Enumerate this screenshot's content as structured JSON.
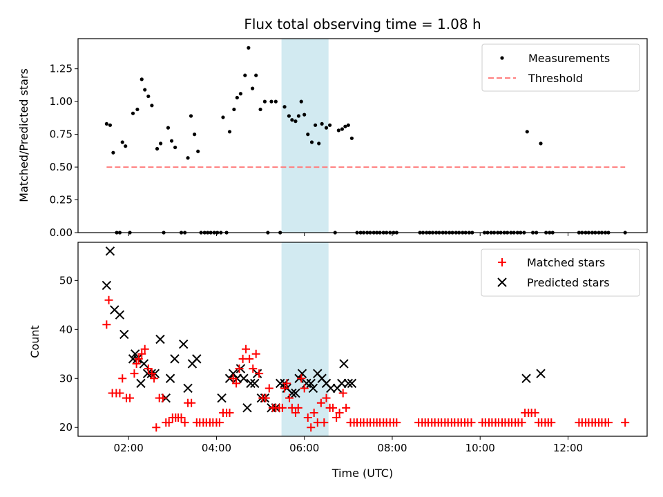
{
  "colors": {
    "measure": "#000000",
    "threshold": "#ff7f7f",
    "matched": "#ff0000",
    "predicted": "#000000",
    "span": "#add8e6"
  },
  "chart_data": [
    {
      "type": "scatter",
      "title": "Flux total observing time = 1.08 h",
      "ylabel": "Matched/Predicted stars",
      "xlim_hours": [
        0.85,
        13.8
      ],
      "ylim": [
        0,
        1.48
      ],
      "yticks": [
        "0.00",
        "0.25",
        "0.50",
        "0.75",
        "1.00",
        "1.25"
      ],
      "highlight_span_hours": [
        5.48,
        6.55
      ],
      "legend": {
        "position": "upper right",
        "measurements": "Measurements",
        "threshold": "Threshold"
      },
      "threshold": {
        "value": 0.5,
        "x_from_hours": 1.5,
        "x_to_hours": 13.3
      },
      "measurements": [
        [
          1.5,
          0.83
        ],
        [
          1.58,
          0.82
        ],
        [
          1.65,
          0.61
        ],
        [
          1.73,
          0.0
        ],
        [
          1.8,
          0.0
        ],
        [
          1.86,
          0.69
        ],
        [
          1.93,
          0.66
        ],
        [
          2.03,
          0.0
        ],
        [
          2.1,
          0.91
        ],
        [
          2.2,
          0.94
        ],
        [
          2.3,
          1.17
        ],
        [
          2.37,
          1.09
        ],
        [
          2.45,
          1.04
        ],
        [
          2.53,
          0.97
        ],
        [
          2.65,
          0.64
        ],
        [
          2.73,
          0.68
        ],
        [
          2.8,
          0.0
        ],
        [
          2.9,
          0.8
        ],
        [
          2.98,
          0.7
        ],
        [
          3.06,
          0.65
        ],
        [
          3.2,
          0.0
        ],
        [
          3.28,
          0.0
        ],
        [
          3.35,
          0.57
        ],
        [
          3.42,
          0.89
        ],
        [
          3.5,
          0.75
        ],
        [
          3.58,
          0.62
        ],
        [
          3.65,
          0.0
        ],
        [
          3.73,
          0.0
        ],
        [
          3.8,
          0.0
        ],
        [
          3.87,
          0.0
        ],
        [
          3.95,
          0.0
        ],
        [
          4.02,
          0.0
        ],
        [
          4.1,
          0.0
        ],
        [
          4.15,
          0.88
        ],
        [
          4.23,
          0.0
        ],
        [
          4.3,
          0.77
        ],
        [
          4.4,
          0.94
        ],
        [
          4.47,
          1.03
        ],
        [
          4.55,
          1.06
        ],
        [
          4.65,
          1.2
        ],
        [
          4.73,
          1.41
        ],
        [
          4.82,
          1.1
        ],
        [
          4.9,
          1.2
        ],
        [
          5.0,
          0.94
        ],
        [
          5.1,
          1.0
        ],
        [
          5.17,
          0.0
        ],
        [
          5.25,
          1.0
        ],
        [
          5.35,
          1.0
        ],
        [
          5.45,
          0.0
        ],
        [
          5.55,
          0.96
        ],
        [
          5.65,
          0.89
        ],
        [
          5.72,
          0.86
        ],
        [
          5.8,
          0.85
        ],
        [
          5.87,
          0.89
        ],
        [
          5.93,
          1.0
        ],
        [
          6.0,
          0.9
        ],
        [
          6.08,
          0.75
        ],
        [
          6.17,
          0.69
        ],
        [
          6.25,
          0.82
        ],
        [
          6.33,
          0.68
        ],
        [
          6.4,
          0.83
        ],
        [
          6.5,
          0.8
        ],
        [
          6.58,
          0.82
        ],
        [
          6.7,
          0.0
        ],
        [
          6.78,
          0.78
        ],
        [
          6.86,
          0.79
        ],
        [
          6.93,
          0.81
        ],
        [
          7.0,
          0.82
        ],
        [
          7.08,
          0.72
        ],
        [
          7.2,
          0.0
        ],
        [
          7.28,
          0.0
        ],
        [
          7.35,
          0.0
        ],
        [
          7.43,
          0.0
        ],
        [
          7.5,
          0.0
        ],
        [
          7.58,
          0.0
        ],
        [
          7.65,
          0.0
        ],
        [
          7.72,
          0.0
        ],
        [
          7.8,
          0.0
        ],
        [
          7.87,
          0.0
        ],
        [
          7.95,
          0.0
        ],
        [
          8.03,
          0.0
        ],
        [
          8.1,
          0.0
        ],
        [
          8.63,
          0.0
        ],
        [
          8.7,
          0.0
        ],
        [
          8.78,
          0.0
        ],
        [
          8.85,
          0.0
        ],
        [
          8.92,
          0.0
        ],
        [
          9.0,
          0.0
        ],
        [
          9.07,
          0.0
        ],
        [
          9.15,
          0.0
        ],
        [
          9.22,
          0.0
        ],
        [
          9.3,
          0.0
        ],
        [
          9.37,
          0.0
        ],
        [
          9.45,
          0.0
        ],
        [
          9.52,
          0.0
        ],
        [
          9.6,
          0.0
        ],
        [
          9.67,
          0.0
        ],
        [
          9.75,
          0.0
        ],
        [
          9.82,
          0.0
        ],
        [
          10.1,
          0.0
        ],
        [
          10.17,
          0.0
        ],
        [
          10.25,
          0.0
        ],
        [
          10.32,
          0.0
        ],
        [
          10.4,
          0.0
        ],
        [
          10.47,
          0.0
        ],
        [
          10.55,
          0.0
        ],
        [
          10.62,
          0.0
        ],
        [
          10.7,
          0.0
        ],
        [
          10.77,
          0.0
        ],
        [
          10.85,
          0.0
        ],
        [
          10.92,
          0.0
        ],
        [
          11.0,
          0.0
        ],
        [
          11.07,
          0.77
        ],
        [
          11.2,
          0.0
        ],
        [
          11.28,
          0.0
        ],
        [
          11.38,
          0.68
        ],
        [
          11.5,
          0.0
        ],
        [
          11.58,
          0.0
        ],
        [
          11.65,
          0.0
        ],
        [
          12.25,
          0.0
        ],
        [
          12.32,
          0.0
        ],
        [
          12.4,
          0.0
        ],
        [
          12.47,
          0.0
        ],
        [
          12.55,
          0.0
        ],
        [
          12.62,
          0.0
        ],
        [
          12.7,
          0.0
        ],
        [
          12.77,
          0.0
        ],
        [
          12.85,
          0.0
        ],
        [
          12.92,
          0.0
        ],
        [
          13.3,
          0.0
        ]
      ]
    },
    {
      "type": "scatter",
      "xlabel": "Time (UTC)",
      "ylabel": "Count",
      "xlim_hours": [
        0.85,
        13.8
      ],
      "ylim": [
        18.2,
        57.8
      ],
      "yticks": [
        "20",
        "30",
        "40",
        "50"
      ],
      "xticks": [
        "02:00",
        "04:00",
        "06:00",
        "08:00",
        "10:00",
        "12:00"
      ],
      "highlight_span_hours": [
        5.48,
        6.55
      ],
      "legend": {
        "position": "upper right",
        "matched": "Matched stars",
        "predicted": "Predicted stars"
      },
      "matched": [
        [
          1.5,
          41
        ],
        [
          1.55,
          46
        ],
        [
          1.63,
          27
        ],
        [
          1.72,
          27
        ],
        [
          1.8,
          27
        ],
        [
          1.86,
          30
        ],
        [
          1.95,
          26
        ],
        [
          2.03,
          26
        ],
        [
          2.13,
          31
        ],
        [
          2.18,
          33
        ],
        [
          2.23,
          34
        ],
        [
          2.3,
          35
        ],
        [
          2.37,
          36
        ],
        [
          2.45,
          32
        ],
        [
          2.53,
          31
        ],
        [
          2.58,
          30
        ],
        [
          2.63,
          20
        ],
        [
          2.7,
          26
        ],
        [
          2.78,
          26
        ],
        [
          2.85,
          21
        ],
        [
          2.92,
          21
        ],
        [
          3.0,
          22
        ],
        [
          3.07,
          22
        ],
        [
          3.13,
          22
        ],
        [
          3.2,
          22
        ],
        [
          3.28,
          21
        ],
        [
          3.35,
          25
        ],
        [
          3.43,
          25
        ],
        [
          3.55,
          21
        ],
        [
          3.62,
          21
        ],
        [
          3.7,
          21
        ],
        [
          3.77,
          21
        ],
        [
          3.85,
          21
        ],
        [
          3.92,
          21
        ],
        [
          4.0,
          21
        ],
        [
          4.07,
          21
        ],
        [
          4.15,
          23
        ],
        [
          4.23,
          23
        ],
        [
          4.3,
          23
        ],
        [
          4.38,
          30
        ],
        [
          4.45,
          29
        ],
        [
          4.52,
          32
        ],
        [
          4.6,
          34
        ],
        [
          4.67,
          36
        ],
        [
          4.75,
          34
        ],
        [
          4.83,
          32
        ],
        [
          4.9,
          35
        ],
        [
          4.97,
          31
        ],
        [
          5.05,
          26
        ],
        [
          5.12,
          26
        ],
        [
          5.2,
          28
        ],
        [
          5.28,
          24
        ],
        [
          5.35,
          24
        ],
        [
          5.43,
          24
        ],
        [
          5.5,
          24
        ],
        [
          5.55,
          28
        ],
        [
          5.6,
          29
        ],
        [
          5.66,
          26
        ],
        [
          5.72,
          24
        ],
        [
          5.8,
          23
        ],
        [
          5.86,
          24
        ],
        [
          5.93,
          30
        ],
        [
          6.0,
          28
        ],
        [
          6.08,
          22
        ],
        [
          6.15,
          20
        ],
        [
          6.22,
          23
        ],
        [
          6.3,
          21
        ],
        [
          6.38,
          25
        ],
        [
          6.45,
          21
        ],
        [
          6.5,
          26
        ],
        [
          6.58,
          24
        ],
        [
          6.65,
          24
        ],
        [
          6.73,
          22
        ],
        [
          6.8,
          23
        ],
        [
          6.88,
          27
        ],
        [
          6.95,
          24
        ],
        [
          7.05,
          21
        ],
        [
          7.13,
          21
        ],
        [
          7.2,
          21
        ],
        [
          7.28,
          21
        ],
        [
          7.35,
          21
        ],
        [
          7.43,
          21
        ],
        [
          7.5,
          21
        ],
        [
          7.58,
          21
        ],
        [
          7.65,
          21
        ],
        [
          7.72,
          21
        ],
        [
          7.8,
          21
        ],
        [
          7.87,
          21
        ],
        [
          7.95,
          21
        ],
        [
          8.03,
          21
        ],
        [
          8.1,
          21
        ],
        [
          8.6,
          21
        ],
        [
          8.68,
          21
        ],
        [
          8.75,
          21
        ],
        [
          8.82,
          21
        ],
        [
          8.9,
          21
        ],
        [
          8.97,
          21
        ],
        [
          9.05,
          21
        ],
        [
          9.12,
          21
        ],
        [
          9.2,
          21
        ],
        [
          9.27,
          21
        ],
        [
          9.35,
          21
        ],
        [
          9.42,
          21
        ],
        [
          9.5,
          21
        ],
        [
          9.57,
          21
        ],
        [
          9.65,
          21
        ],
        [
          9.72,
          21
        ],
        [
          9.8,
          21
        ],
        [
          10.05,
          21
        ],
        [
          10.12,
          21
        ],
        [
          10.2,
          21
        ],
        [
          10.27,
          21
        ],
        [
          10.35,
          21
        ],
        [
          10.42,
          21
        ],
        [
          10.5,
          21
        ],
        [
          10.57,
          21
        ],
        [
          10.65,
          21
        ],
        [
          10.72,
          21
        ],
        [
          10.8,
          21
        ],
        [
          10.87,
          21
        ],
        [
          10.95,
          21
        ],
        [
          11.02,
          23
        ],
        [
          11.1,
          23
        ],
        [
          11.17,
          23
        ],
        [
          11.25,
          23
        ],
        [
          11.33,
          21
        ],
        [
          11.4,
          21
        ],
        [
          11.48,
          21
        ],
        [
          11.55,
          21
        ],
        [
          11.62,
          21
        ],
        [
          12.25,
          21
        ],
        [
          12.32,
          21
        ],
        [
          12.4,
          21
        ],
        [
          12.47,
          21
        ],
        [
          12.55,
          21
        ],
        [
          12.62,
          21
        ],
        [
          12.7,
          21
        ],
        [
          12.77,
          21
        ],
        [
          12.85,
          21
        ],
        [
          12.92,
          21
        ],
        [
          13.3,
          21
        ]
      ],
      "predicted": [
        [
          1.5,
          49
        ],
        [
          1.58,
          56
        ],
        [
          1.68,
          44
        ],
        [
          1.8,
          43
        ],
        [
          1.9,
          39
        ],
        [
          2.1,
          34
        ],
        [
          2.15,
          35
        ],
        [
          2.2,
          34
        ],
        [
          2.28,
          29
        ],
        [
          2.35,
          33
        ],
        [
          2.43,
          31
        ],
        [
          2.52,
          31
        ],
        [
          2.6,
          31
        ],
        [
          2.72,
          38
        ],
        [
          2.85,
          26
        ],
        [
          2.95,
          30
        ],
        [
          3.05,
          34
        ],
        [
          3.25,
          37
        ],
        [
          3.35,
          28
        ],
        [
          3.45,
          33
        ],
        [
          3.55,
          34
        ],
        [
          4.12,
          26
        ],
        [
          4.3,
          30
        ],
        [
          4.38,
          31
        ],
        [
          4.47,
          30
        ],
        [
          4.55,
          32
        ],
        [
          4.62,
          30
        ],
        [
          4.7,
          24
        ],
        [
          4.78,
          29
        ],
        [
          4.87,
          29
        ],
        [
          4.93,
          31
        ],
        [
          5.02,
          26
        ],
        [
          5.1,
          26
        ],
        [
          5.25,
          24
        ],
        [
          5.35,
          24
        ],
        [
          5.45,
          29
        ],
        [
          5.55,
          29
        ],
        [
          5.6,
          28
        ],
        [
          5.72,
          27
        ],
        [
          5.8,
          27
        ],
        [
          5.88,
          30
        ],
        [
          5.95,
          31
        ],
        [
          6.05,
          29
        ],
        [
          6.15,
          29
        ],
        [
          6.2,
          28
        ],
        [
          6.3,
          31
        ],
        [
          6.4,
          30
        ],
        [
          6.5,
          29
        ],
        [
          6.6,
          28
        ],
        [
          6.75,
          28
        ],
        [
          6.85,
          29
        ],
        [
          6.9,
          33
        ],
        [
          7.0,
          29
        ],
        [
          7.08,
          29
        ],
        [
          11.05,
          30
        ],
        [
          11.38,
          31
        ]
      ]
    }
  ]
}
